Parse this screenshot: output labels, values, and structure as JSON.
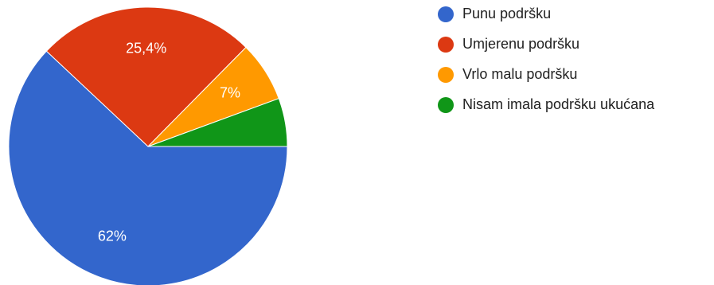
{
  "chart_data": {
    "type": "pie",
    "title": "",
    "legend_position": "right",
    "start_angle_deg": 0,
    "direction": "clockwise",
    "slices": [
      {
        "name": "Punu podršku",
        "value": 62,
        "label": "62%",
        "color": "#3366cc"
      },
      {
        "name": "Umjerenu podršku",
        "value": 25.4,
        "label": "25,4%",
        "color": "#dc3912"
      },
      {
        "name": "Vrlo malu podršku",
        "value": 7,
        "label": "7%",
        "color": "#ff9900"
      },
      {
        "name": "Nisam imala podršku ukućana",
        "value": 5.6,
        "label": "",
        "color": "#109618"
      }
    ]
  }
}
